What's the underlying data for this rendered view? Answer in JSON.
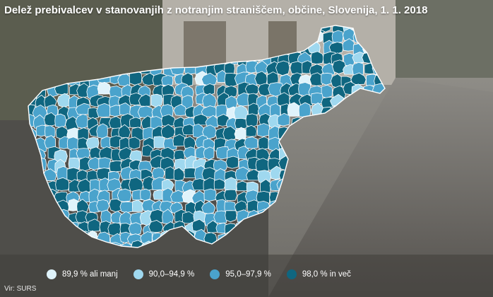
{
  "title": "Delež prebivalcev v stanovanjih z notranjim straniščem, občine, Slovenija, 1. 1. 2018",
  "source": "Vir: SURS",
  "legend": [
    {
      "label": "89,9 % ali manj",
      "color": "#dff3fb"
    },
    {
      "label": "90,0–94,9 %",
      "color": "#9fd8ef"
    },
    {
      "label": "95,0–97,9 %",
      "color": "#4aa3cc"
    },
    {
      "label": "98,0 % in več",
      "color": "#0f6680"
    }
  ],
  "map": {
    "region": "Slovenija",
    "unit": "občine"
  }
}
